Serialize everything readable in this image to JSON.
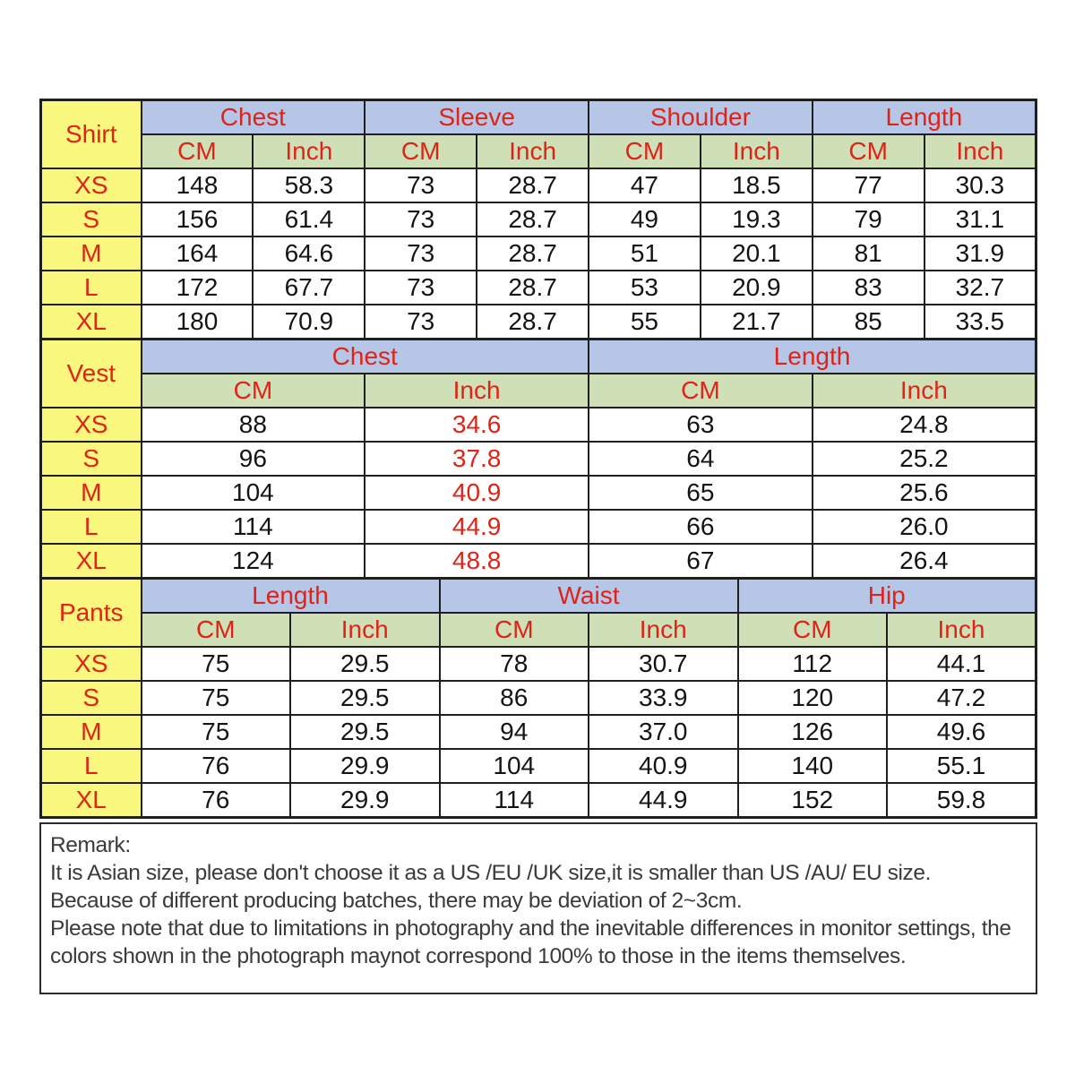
{
  "page": {
    "background": "#ffffff"
  },
  "colors": {
    "group_header_bg": "#b5c6e6",
    "unit_header_bg": "#cfdfb6",
    "size_column_bg": "#f9f77d",
    "accent_red": "#e02318",
    "body_text": "#141414",
    "border": "#1f1f1f",
    "remark_text": "#3a3a3a"
  },
  "sections": [
    {
      "id": "shirt",
      "label": "Shirt",
      "groups": [
        "Chest",
        "Sleeve",
        "Shoulder",
        "Length"
      ],
      "unit_headers": [
        "CM",
        "Inch",
        "CM",
        "Inch",
        "CM",
        "Inch",
        "CM",
        "Inch"
      ],
      "red_value_columns": [],
      "rows": [
        {
          "size": "XS",
          "values": [
            "148",
            "58.3",
            "73",
            "28.7",
            "47",
            "18.5",
            "77",
            "30.3"
          ]
        },
        {
          "size": "S",
          "values": [
            "156",
            "61.4",
            "73",
            "28.7",
            "49",
            "19.3",
            "79",
            "31.1"
          ]
        },
        {
          "size": "M",
          "values": [
            "164",
            "64.6",
            "73",
            "28.7",
            "51",
            "20.1",
            "81",
            "31.9"
          ]
        },
        {
          "size": "L",
          "values": [
            "172",
            "67.7",
            "73",
            "28.7",
            "53",
            "20.9",
            "83",
            "32.7"
          ]
        },
        {
          "size": "XL",
          "values": [
            "180",
            "70.9",
            "73",
            "28.7",
            "55",
            "21.7",
            "85",
            "33.5"
          ]
        }
      ]
    },
    {
      "id": "vest",
      "label": "Vest",
      "groups": [
        "Chest",
        "Length"
      ],
      "unit_headers": [
        "CM",
        "Inch",
        "CM",
        "Inch"
      ],
      "red_value_columns": [
        1
      ],
      "rows": [
        {
          "size": "XS",
          "values": [
            "88",
            "34.6",
            "63",
            "24.8"
          ]
        },
        {
          "size": "S",
          "values": [
            "96",
            "37.8",
            "64",
            "25.2"
          ]
        },
        {
          "size": "M",
          "values": [
            "104",
            "40.9",
            "65",
            "25.6"
          ]
        },
        {
          "size": "L",
          "values": [
            "114",
            "44.9",
            "66",
            "26.0"
          ]
        },
        {
          "size": "XL",
          "values": [
            "124",
            "48.8",
            "67",
            "26.4"
          ]
        }
      ]
    },
    {
      "id": "pants",
      "label": "Pants",
      "groups": [
        "Length",
        "Waist",
        "Hip"
      ],
      "unit_headers": [
        "CM",
        "Inch",
        "CM",
        "Inch",
        "CM",
        "Inch"
      ],
      "red_value_columns": [],
      "rows": [
        {
          "size": "XS",
          "values": [
            "75",
            "29.5",
            "78",
            "30.7",
            "112",
            "44.1"
          ]
        },
        {
          "size": "S",
          "values": [
            "75",
            "29.5",
            "86",
            "33.9",
            "120",
            "47.2"
          ]
        },
        {
          "size": "M",
          "values": [
            "75",
            "29.5",
            "94",
            "37.0",
            "126",
            "49.6"
          ]
        },
        {
          "size": "L",
          "values": [
            "76",
            "29.9",
            "104",
            "40.9",
            "140",
            "55.1"
          ]
        },
        {
          "size": "XL",
          "values": [
            "76",
            "29.9",
            "114",
            "44.9",
            "152",
            "59.8"
          ]
        }
      ]
    }
  ],
  "remark": {
    "lines": [
      "Remark:",
      "It is Asian size, please don't choose it as a US /EU /UK size,it is smaller than US /AU/ EU size.",
      "Because of different producing batches, there may be deviation of 2~3cm.",
      "Please note that  due to limitations in photography and the inevitable  differences in monitor settings, the colors shown in the  photograph maynot correspond 100% to those in the items themselves."
    ]
  }
}
